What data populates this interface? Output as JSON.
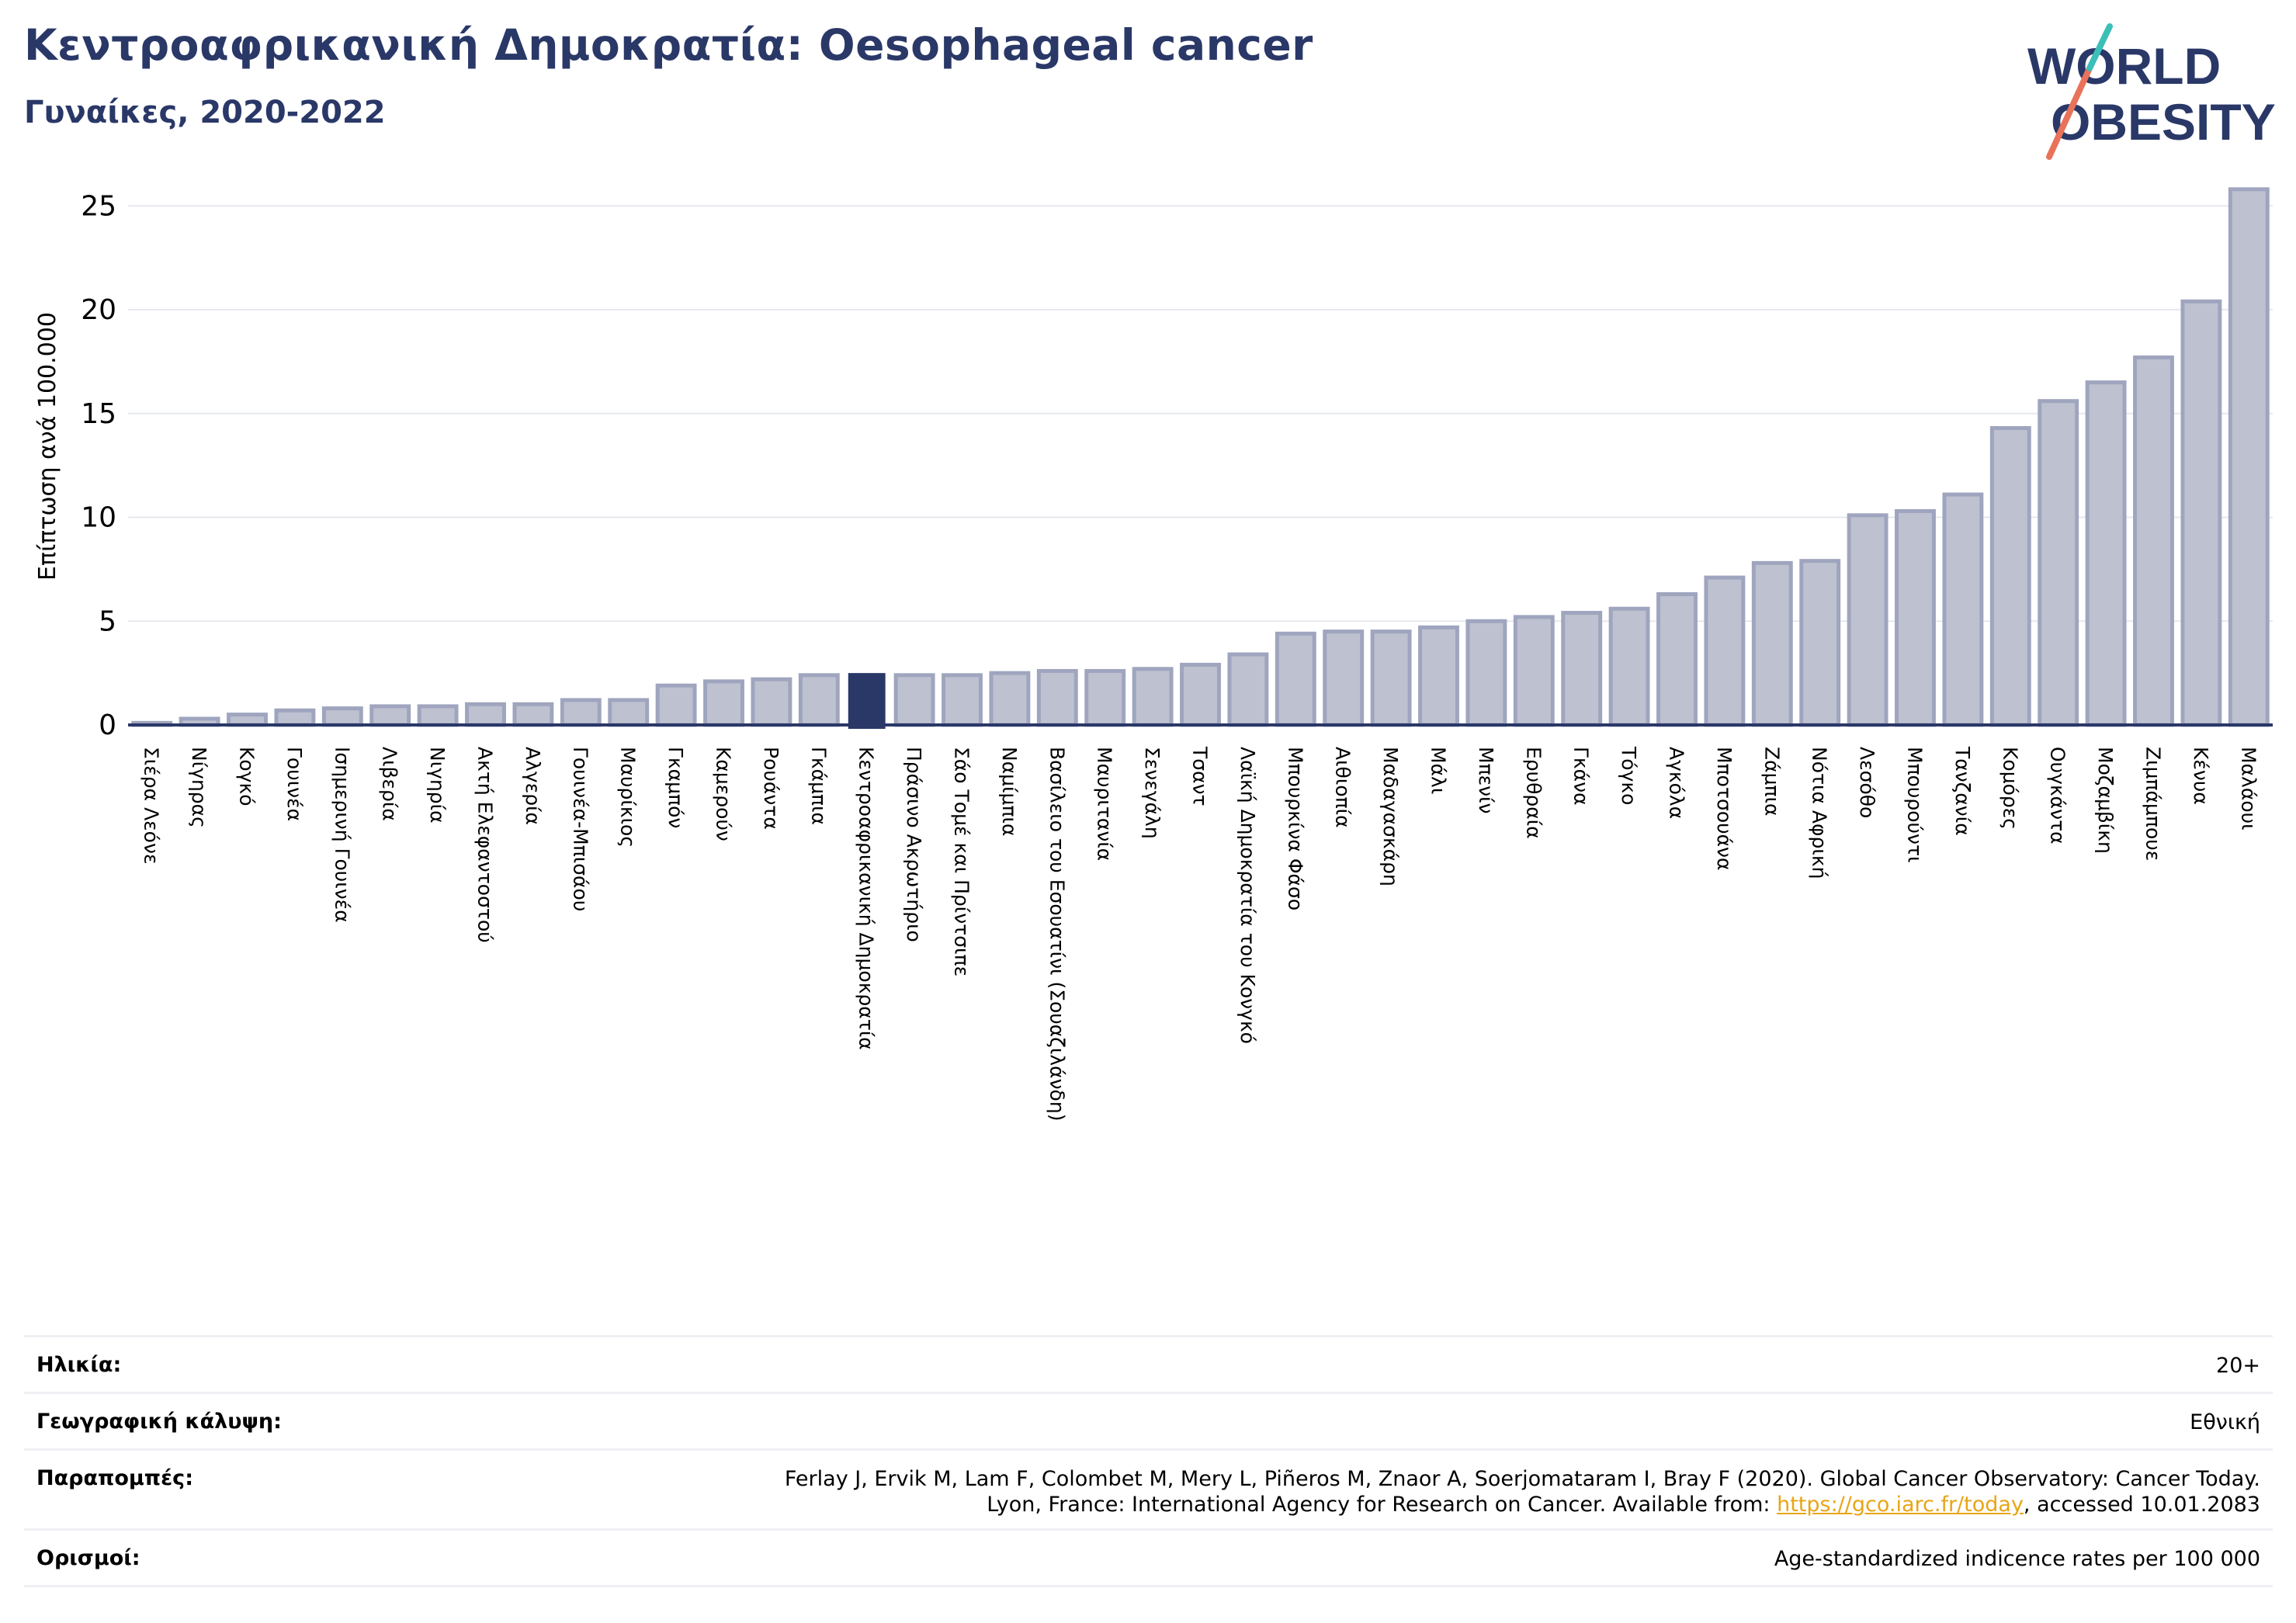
{
  "header": {
    "title": "Κεντροαφρικανική Δημοκρατία: Oesophageal cancer",
    "subtitle": "Γυναίκες, 2020-2022"
  },
  "logo": {
    "line1": "WORLD",
    "line2": "OBESITY",
    "text_color": "#2a3868",
    "slash_colors": [
      "#e8735a",
      "#3bbfb8"
    ]
  },
  "colors": {
    "bar": "#bdc1d0",
    "bar_edge": "#9fa5be",
    "highlight": "#2a3868",
    "grid": "#e6e8ee",
    "axis": "#2a3868"
  },
  "chart_data": {
    "type": "bar",
    "ylabel": "Επίπτωση ανά 100.000",
    "ylim": [
      0,
      26.5
    ],
    "yticks": [
      0,
      5,
      10,
      15,
      20,
      25
    ],
    "grid": true,
    "highlight_category": "Κεντροαφρικανική Δημοκρατία",
    "categories": [
      "Σιέρα Λεόνε",
      "Νίγηρας",
      "Κογκό",
      "Γουινέα",
      "Ισημερινή Γουινέα",
      "Λιβερία",
      "Νιγηρία",
      "Ακτή Ελεφαντοστού",
      "Αλγερία",
      "Γουινέα-Μπισάου",
      "Μαυρίκιος",
      "Γκαμπόν",
      "Καμερούν",
      "Ρουάντα",
      "Γκάμπια",
      "Κεντροαφρικανική Δημοκρατία",
      "Πράσινο Ακρωτήριο",
      "Σάο Τομέ και Πρίντσιπε",
      "Ναμίμπια",
      "Βασίλειο του Εσουατίνι (Σουαζιλάνδη)",
      "Μαυριτανία",
      "Σενεγάλη",
      "Τσαντ",
      "Λαϊκή Δημοκρατία του Κονγκό",
      "Μπουρκίνα Φάσο",
      "Αιθιοπία",
      "Μαδαγασκάρη",
      "Μάλι",
      "Μπενίν",
      "Ερυθραία",
      "Γκάνα",
      "Τόγκο",
      "Αγκόλα",
      "Μποτσουάνα",
      "Ζάμπια",
      "Νότια Αφρική",
      "Λεσόθο",
      "Μπουρούντι",
      "Τανζανία",
      "Κομόρες",
      "Ουγκάντα",
      "Μοζαμβίκη",
      "Ζιμπάμπουε",
      "Κένυα",
      "Μαλάουι"
    ],
    "values": [
      0.1,
      0.3,
      0.5,
      0.7,
      0.8,
      0.9,
      0.9,
      1.0,
      1.0,
      1.2,
      1.2,
      1.9,
      2.1,
      2.2,
      2.4,
      2.5,
      2.4,
      2.4,
      2.5,
      2.6,
      2.6,
      2.7,
      2.9,
      3.4,
      4.4,
      4.5,
      4.5,
      4.7,
      5.0,
      5.2,
      5.4,
      5.6,
      6.3,
      7.1,
      7.8,
      7.9,
      10.1,
      10.3,
      11.1,
      14.3,
      15.6,
      16.5,
      17.7,
      20.4,
      25.8
    ]
  },
  "footer": {
    "rows": [
      {
        "key": "Ηλικία:",
        "value_lines": [
          "20+"
        ]
      },
      {
        "key": "Γεωγραφική κάλυψη:",
        "value_lines": [
          "Εθνική"
        ]
      },
      {
        "key": "Παραπομπές:",
        "value_line1": "Ferlay J, Ervik M, Lam F, Colombet M, Mery L, Piñeros M, Znaor A, Soerjomataram I, Bray F (2020). Global Cancer Observatory: Cancer Today.",
        "value_line2_pre": "Lyon, France: International Agency for Research on Cancer. Available from: ",
        "value_link": "https://gco.iarc.fr/today",
        "value_line2_post": ", accessed 10.01.2083"
      },
      {
        "key": "Ορισμοί:",
        "value_lines": [
          "Age-standardized indicence rates per 100 000"
        ]
      }
    ]
  }
}
